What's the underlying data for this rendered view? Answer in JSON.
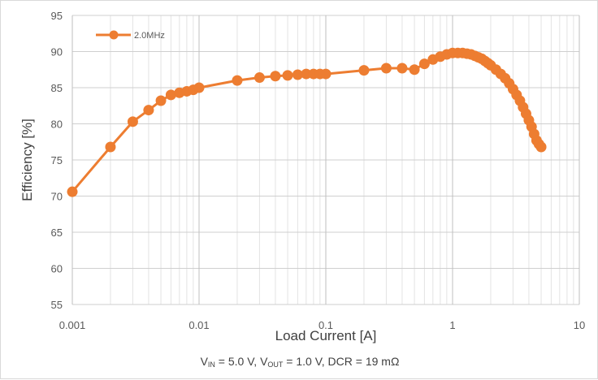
{
  "chart_data": {
    "type": "line",
    "x_scale": "log",
    "xlabel": "Load Current [A]",
    "ylabel": "Efficiency [%]",
    "xlim": [
      0.001,
      10
    ],
    "ylim": [
      55,
      95
    ],
    "x_ticks": [
      0.001,
      0.01,
      0.1,
      1,
      10
    ],
    "x_tick_labels": [
      "0.001",
      "0.01",
      "0.1",
      "1",
      "10"
    ],
    "y_ticks": [
      55,
      60,
      65,
      70,
      75,
      80,
      85,
      90,
      95
    ],
    "grid": true,
    "legend_position": "top-left",
    "series": [
      {
        "name": "2.0MHz",
        "color": "#ed7d31",
        "x": [
          0.001,
          0.002,
          0.003,
          0.004,
          0.005,
          0.006,
          0.007,
          0.008,
          0.009,
          0.01,
          0.02,
          0.03,
          0.04,
          0.05,
          0.06,
          0.07,
          0.08,
          0.09,
          0.1,
          0.2,
          0.3,
          0.4,
          0.5,
          0.6,
          0.7,
          0.8,
          0.9,
          1.0,
          1.1,
          1.2,
          1.3,
          1.4,
          1.5,
          1.6,
          1.7,
          1.8,
          1.9,
          2.0,
          2.2,
          2.4,
          2.6,
          2.8,
          3.0,
          3.2,
          3.4,
          3.6,
          3.8,
          4.0,
          4.2,
          4.4,
          4.6,
          4.8,
          5.0
        ],
        "y": [
          70.6,
          76.8,
          80.3,
          81.9,
          83.2,
          84.0,
          84.3,
          84.5,
          84.7,
          85.0,
          86.0,
          86.4,
          86.6,
          86.7,
          86.8,
          86.9,
          86.9,
          86.9,
          86.9,
          87.4,
          87.7,
          87.7,
          87.5,
          88.3,
          88.9,
          89.3,
          89.6,
          89.8,
          89.8,
          89.8,
          89.7,
          89.6,
          89.4,
          89.2,
          89.0,
          88.7,
          88.4,
          88.1,
          87.5,
          86.9,
          86.3,
          85.6,
          84.8,
          84.0,
          83.2,
          82.3,
          81.4,
          80.5,
          79.6,
          78.6,
          77.7,
          77.2,
          76.8
        ]
      }
    ],
    "legend": [
      "2.0MHz"
    ],
    "note": {
      "v_in_main": "V",
      "v_in_sub": "IN",
      "v_in_value": " = 5.0 V, ",
      "v_out_main": "V",
      "v_out_sub": "OUT",
      "v_out_value": " = 1.0 V, DCR = 19 mΩ"
    }
  }
}
